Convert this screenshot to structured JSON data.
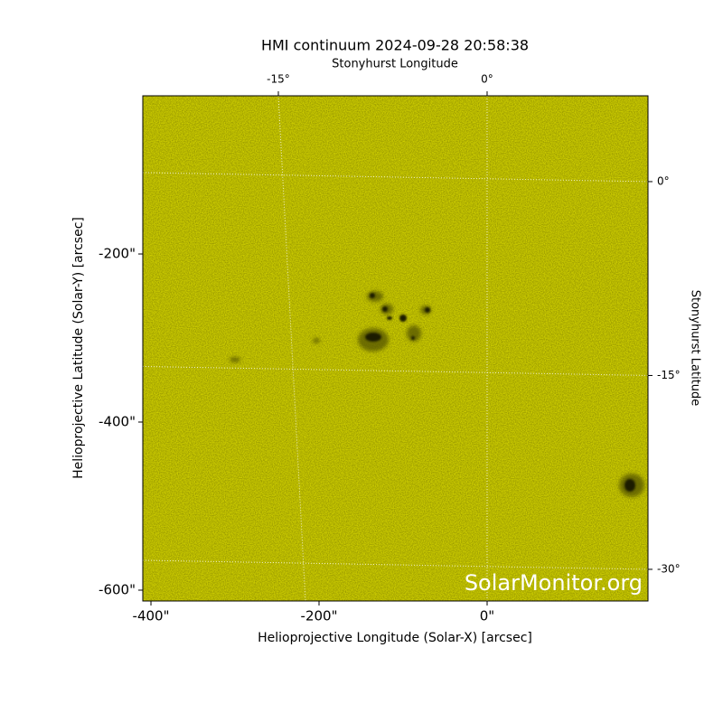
{
  "chart_data": {
    "type": "image",
    "title": "HMI continuum 2024-09-28 20:58:38",
    "x_label": "Helioprojective Longitude (Solar-X) [arcsec]",
    "y_label": "Helioprojective Latitude (Solar-Y) [arcsec]",
    "x2_label": "Stonyhurst Longitude",
    "y2_label": "Stonyhurst Latitude",
    "watermark": "SolarMonitor.org",
    "xlim": [
      -409.7,
      191.4
    ],
    "xticks": [
      {
        "value": -400,
        "label": "-400\""
      },
      {
        "value": -200,
        "label": "-200\""
      },
      {
        "value": 0,
        "label": "0\""
      }
    ],
    "ylim": [
      -612.9,
      -11.8
    ],
    "yticks": [
      {
        "value": -200,
        "label": "-200\""
      },
      {
        "value": -400,
        "label": "-400\""
      },
      {
        "value": -600,
        "label": "-600\""
      }
    ],
    "x2lim": [
      -24.74,
      11.56
    ],
    "x2ticks": [
      {
        "value": -15,
        "label": "-15°"
      },
      {
        "value": 0,
        "label": "0°"
      }
    ],
    "y2lim": [
      -32.45,
      6.64
    ],
    "y2ticks": [
      {
        "value": 0,
        "label": "0°"
      },
      {
        "value": -15,
        "label": "-15°"
      },
      {
        "value": -30,
        "label": "-30°"
      }
    ],
    "color": "#cccc00",
    "grid": true
  }
}
